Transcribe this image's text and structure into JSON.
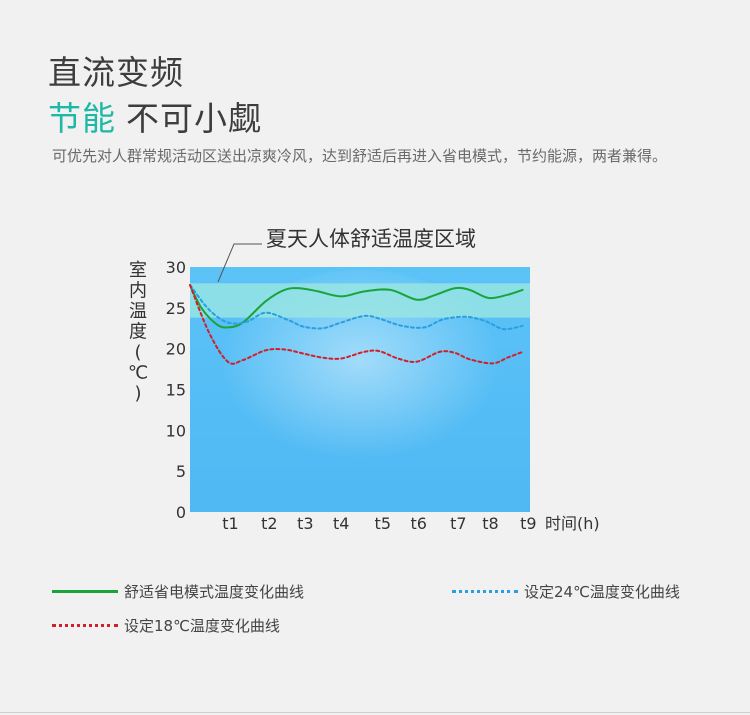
{
  "header": {
    "title_line1": "直流变频",
    "title_line2_highlight": "节能",
    "title_line2_rest": "不可小觑",
    "description": "可优先对人群常规活动区送出凉爽冷风，达到舒适后再进入省电模式，节约能源，两者兼得。"
  },
  "colors": {
    "comfort": "#1aa33a",
    "set24": "#2a9fe0",
    "set18": "#d0202a",
    "accent": "#1fb8a6"
  },
  "chart_data": {
    "type": "line",
    "annotation": "夏天人体舒适温度区域",
    "ylabel": "室内温度(℃)",
    "xlabel": "时间(h)",
    "ylim": [
      0,
      30
    ],
    "yticks": [
      "0",
      "5",
      "10",
      "15",
      "20",
      "25",
      "30"
    ],
    "x_ticks": [
      "t1",
      "t2",
      "t3",
      "t4",
      "t5",
      "t6",
      "t7",
      "t8",
      "t9"
    ],
    "comfort_band": [
      23.8,
      28.0
    ],
    "series": [
      {
        "name": "舒适省电模式温度变化曲线",
        "style": "solid",
        "x": [
          0,
          0.3,
          0.7,
          1.0,
          1.4,
          2.0,
          2.5,
          2.9,
          3.4,
          4.0,
          4.6,
          5.3,
          6.0,
          6.5,
          7.0,
          7.4,
          7.9,
          8.4,
          8.8
        ],
        "y": [
          27.8,
          25.0,
          23.0,
          22.6,
          23.2,
          25.8,
          27.2,
          27.4,
          27.0,
          26.4,
          27.0,
          27.2,
          26.0,
          26.6,
          27.4,
          27.2,
          26.2,
          26.6,
          27.2
        ]
      },
      {
        "name": "设定24℃温度变化曲线",
        "style": "dotted",
        "x": [
          0,
          0.5,
          1.0,
          1.5,
          2.0,
          2.6,
          3.0,
          3.5,
          4.0,
          4.6,
          5.0,
          5.6,
          6.2,
          6.7,
          7.3,
          7.8,
          8.3,
          8.8
        ],
        "y": [
          27.8,
          24.8,
          23.2,
          23.3,
          24.4,
          23.5,
          22.7,
          22.5,
          23.2,
          24.0,
          23.7,
          22.8,
          22.6,
          23.6,
          23.9,
          23.4,
          22.4,
          22.8
        ]
      },
      {
        "name": "设定18℃温度变化曲线",
        "style": "dotted",
        "x": [
          0,
          0.5,
          1.0,
          1.4,
          2.0,
          2.5,
          3.0,
          3.5,
          4.0,
          4.6,
          5.0,
          5.5,
          6.0,
          6.6,
          7.0,
          7.4,
          8.0,
          8.4,
          8.8
        ],
        "y": [
          27.8,
          22.0,
          18.4,
          18.6,
          19.8,
          19.9,
          19.4,
          18.9,
          18.8,
          19.6,
          19.7,
          18.8,
          18.4,
          19.6,
          19.5,
          18.7,
          18.2,
          18.9,
          19.6
        ]
      }
    ]
  },
  "legend": {
    "comfort": "舒适省电模式温度变化曲线",
    "set24": "设定24℃温度变化曲线",
    "set18": "设定18℃温度变化曲线"
  }
}
